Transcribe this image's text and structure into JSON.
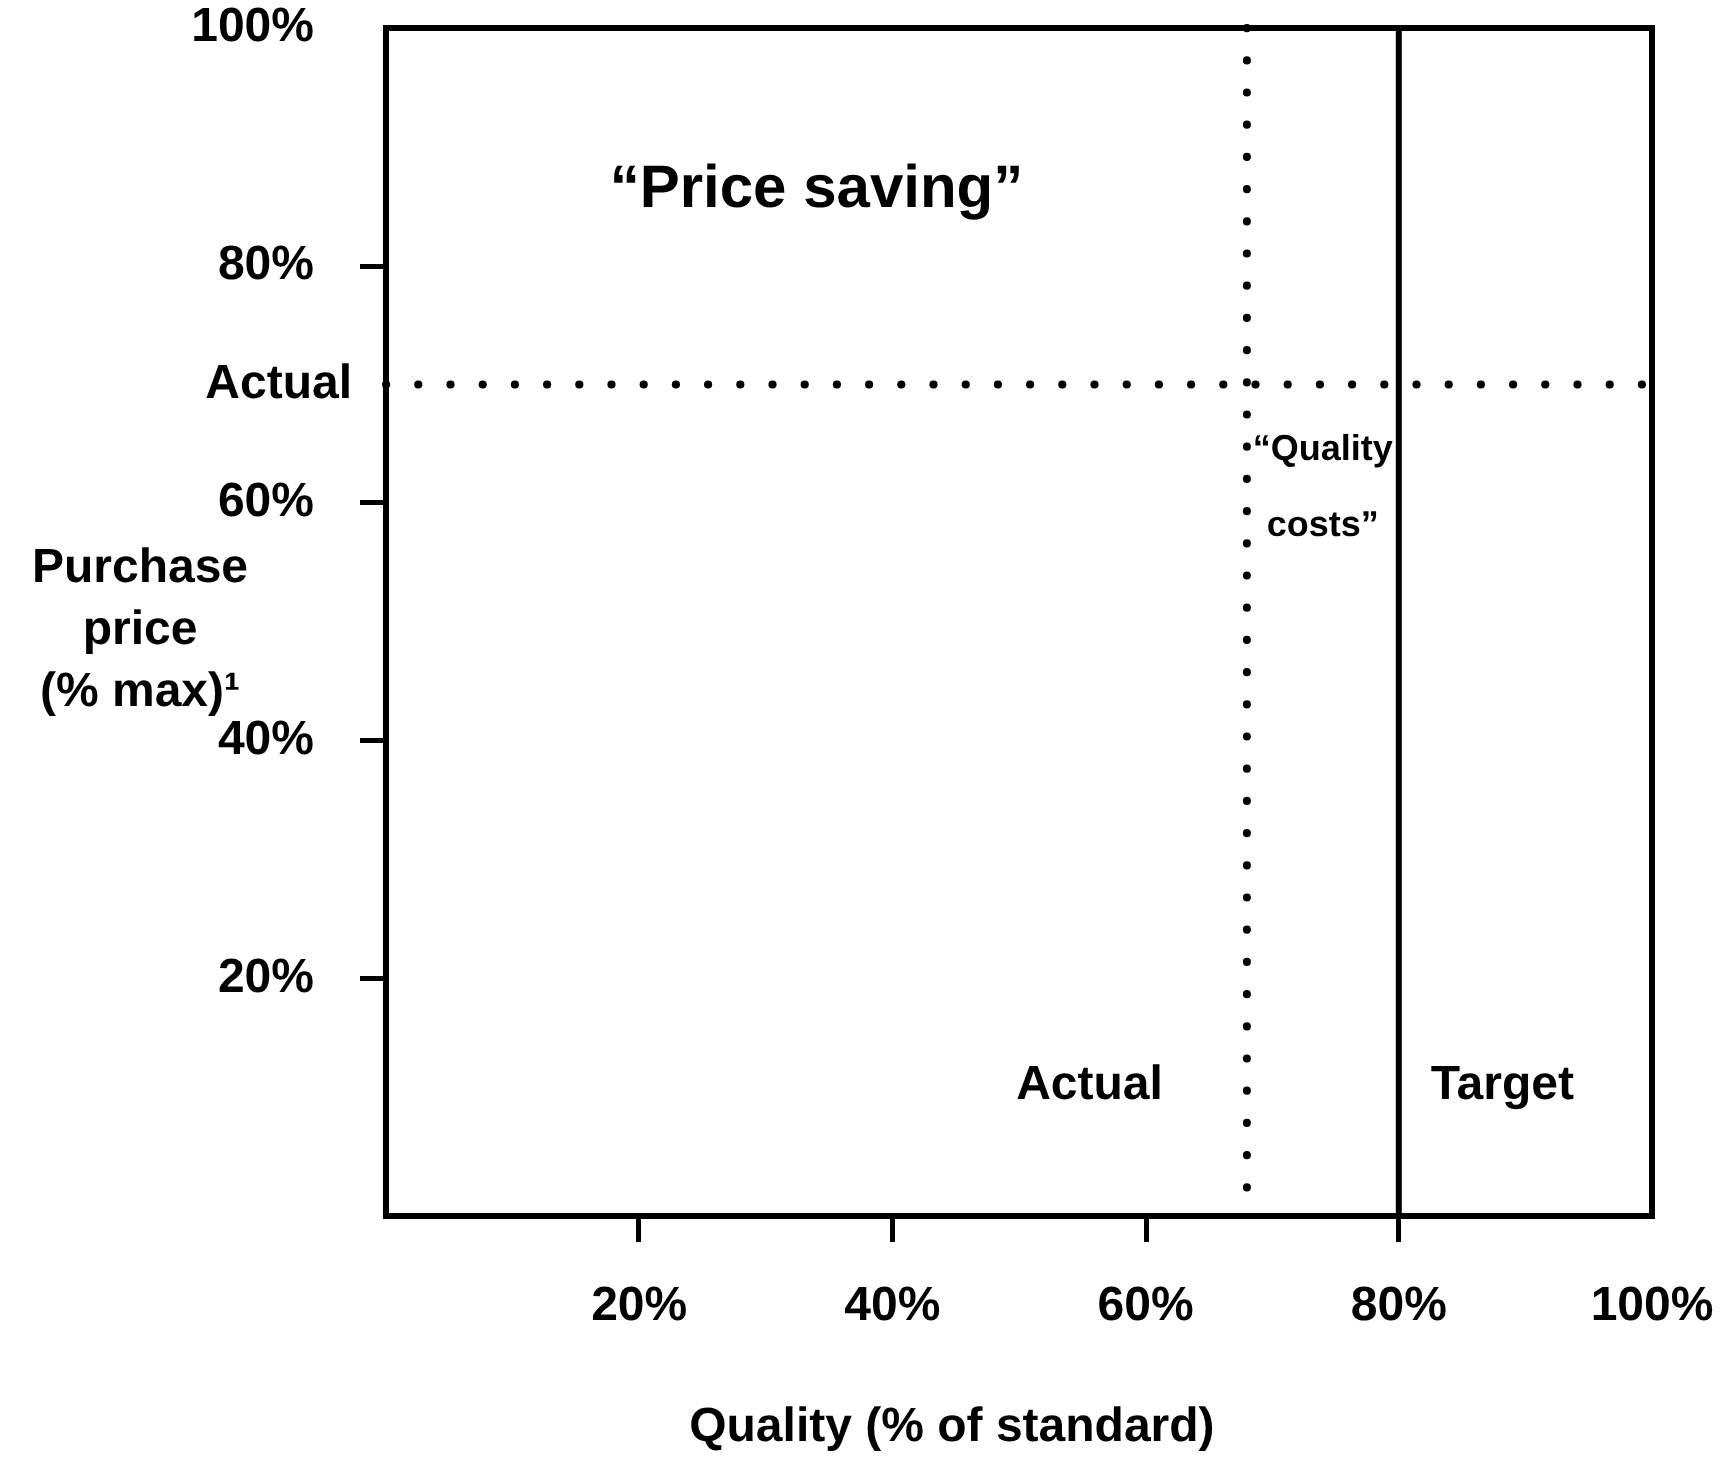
{
  "chart_data": {
    "type": "line",
    "xlabel": "Quality (% of standard)",
    "ylabel": "Purchase price (% max)¹",
    "xlim": [
      0,
      100
    ],
    "ylim": [
      0,
      100
    ],
    "xticks": [
      {
        "value": 20,
        "label": "20%"
      },
      {
        "value": 40,
        "label": "40%"
      },
      {
        "value": 60,
        "label": "60%"
      },
      {
        "value": 80,
        "label": "80%"
      },
      {
        "value": 100,
        "label": "100%"
      }
    ],
    "yticks": [
      {
        "value": 20,
        "label": "20%"
      },
      {
        "value": 40,
        "label": "40%"
      },
      {
        "value": 60,
        "label": "60%"
      },
      {
        "value": 80,
        "label": "80%"
      },
      {
        "value": 100,
        "label": "100%"
      }
    ],
    "ref_lines": [
      {
        "axis": "y",
        "value": 70,
        "label": "Actual",
        "line_style": "dotted",
        "color": "#000000"
      },
      {
        "axis": "x",
        "value": 68,
        "label": "Actual",
        "line_style": "dotted",
        "color": "#000000"
      },
      {
        "axis": "x",
        "value": 80,
        "label": "Target",
        "line_style": "solid",
        "color": "#000000"
      }
    ],
    "annotations": [
      "“Price saving”",
      "“Quality costs”"
    ]
  }
}
